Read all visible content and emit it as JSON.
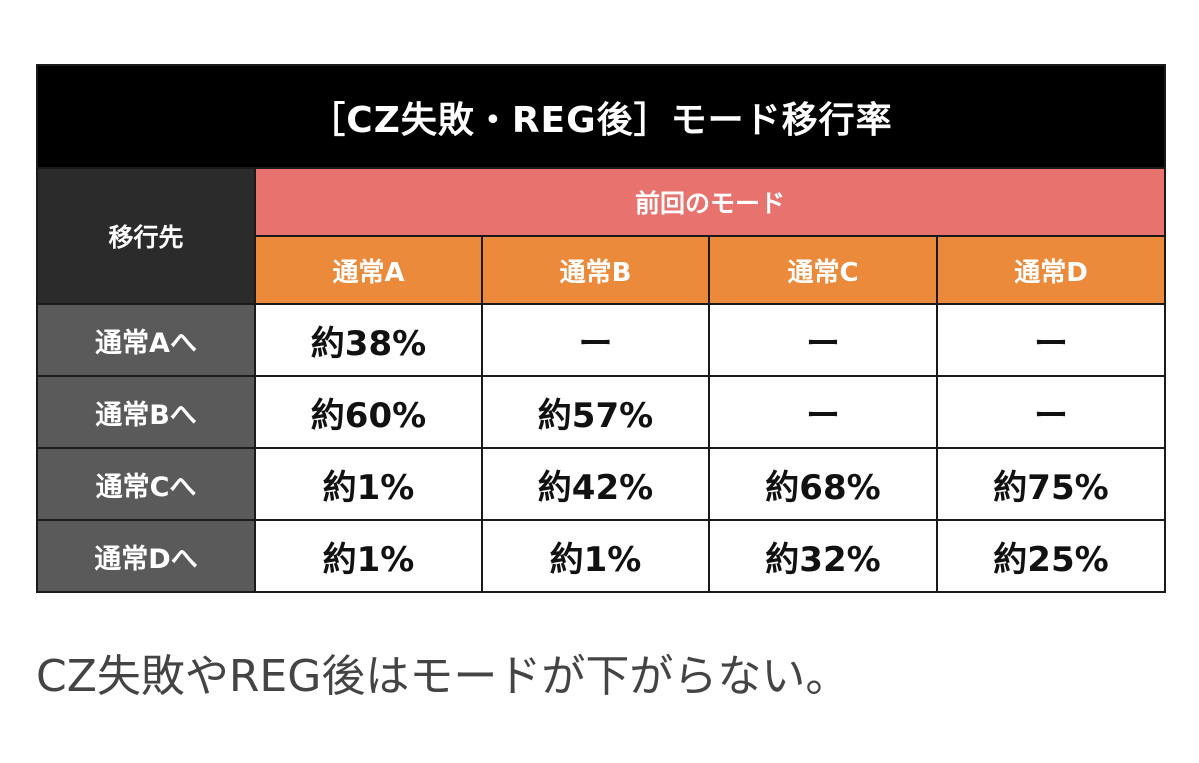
{
  "title": "［CZ失敗・REG後］モード移行率",
  "table": {
    "destination_header": "移行先",
    "previous_mode_header": "前回のモード",
    "columns": [
      "通常A",
      "通常B",
      "通常C",
      "通常D"
    ],
    "rows": [
      {
        "label": "通常Aへ",
        "values": [
          "約38%",
          "ー",
          "ー",
          "ー"
        ]
      },
      {
        "label": "通常Bへ",
        "values": [
          "約60%",
          "約57%",
          "ー",
          "ー"
        ]
      },
      {
        "label": "通常Cへ",
        "values": [
          "約1%",
          "約42%",
          "約68%",
          "約75%"
        ]
      },
      {
        "label": "通常Dへ",
        "values": [
          "約1%",
          "約1%",
          "約32%",
          "約25%"
        ]
      }
    ]
  },
  "caption": "CZ失敗やREG後はモードが下がらない。",
  "colors": {
    "title_bg": "#000000",
    "destination_header_bg": "#2b2b2b",
    "previous_mode_header_bg": "#e8726e",
    "column_header_bg": "#ec8a3b",
    "row_header_bg": "#5a5a5a",
    "caption_text": "#444444"
  }
}
